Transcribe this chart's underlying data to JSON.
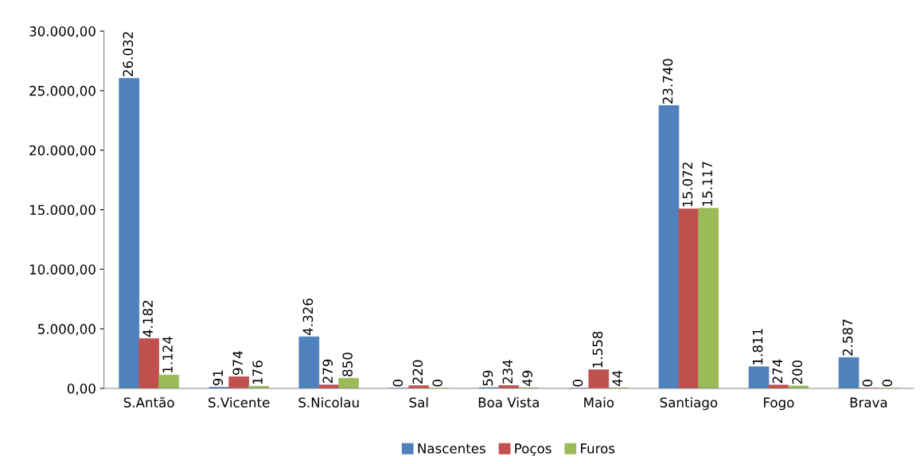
{
  "chart_data": {
    "type": "bar",
    "categories": [
      "S.Antão",
      "S.Vicente",
      "S.Nicolau",
      "Sal",
      "Boa Vista",
      "Maio",
      "Santiago",
      "Fogo",
      "Brava"
    ],
    "series": [
      {
        "name": "Nascentes",
        "color": "#4f81bd",
        "values": [
          26032,
          91,
          4326,
          0,
          59,
          0,
          23740,
          1811,
          2587
        ],
        "value_labels": [
          "26.032",
          "91",
          "4.326",
          "0",
          "59",
          "0",
          "23.740",
          "1.811",
          "2.587"
        ]
      },
      {
        "name": "Poços",
        "color": "#c0504d",
        "values": [
          4182,
          974,
          279,
          220,
          234,
          1558,
          15072,
          274,
          0
        ],
        "value_labels": [
          "4.182",
          "974",
          "279",
          "220",
          "234",
          "1.558",
          "15.072",
          "274",
          "0"
        ]
      },
      {
        "name": "Furos",
        "color": "#9bbb59",
        "values": [
          1124,
          176,
          850,
          0,
          49,
          44,
          15117,
          200,
          0
        ],
        "value_labels": [
          "1.124",
          "176",
          "850",
          "0",
          "49",
          "44",
          "15.117",
          "200",
          "0"
        ]
      }
    ],
    "ylim": [
      0,
      30000
    ],
    "yticks": [
      {
        "value": 0,
        "label": "0,00"
      },
      {
        "value": 5000,
        "label": "5.000,00"
      },
      {
        "value": 10000,
        "label": "10.000,00"
      },
      {
        "value": 15000,
        "label": "15.000,00"
      },
      {
        "value": 20000,
        "label": "20.000,00"
      },
      {
        "value": 25000,
        "label": "25.000,00"
      },
      {
        "value": 30000,
        "label": "30.000,00"
      }
    ],
    "grid": false,
    "legend": "bottom"
  }
}
